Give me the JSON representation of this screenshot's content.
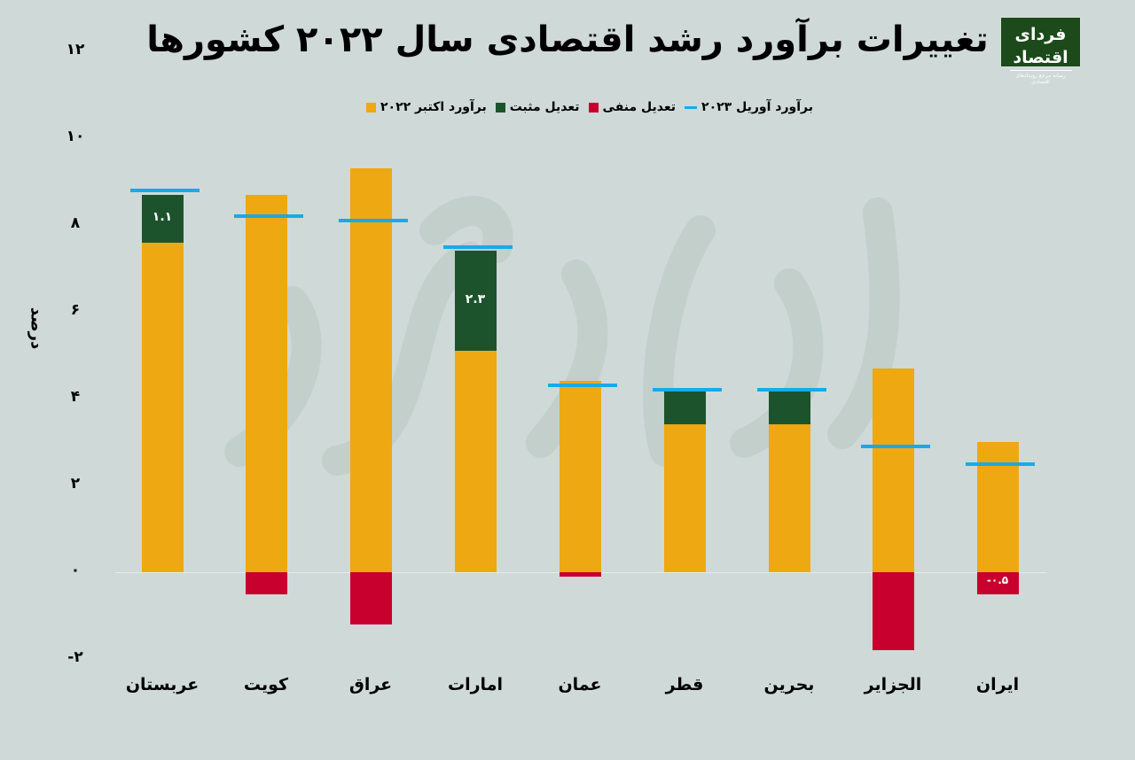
{
  "title": "تغییرات برآورد رشد اقتصادی سال ۲۰۲۲ کشورها",
  "logo": {
    "name": "فردای اقتصاد",
    "subtitle": "رسانه مرجع رویدادهای اقتصادی"
  },
  "legend": [
    {
      "label": "برآورد آوریل ۲۰۲۳",
      "type": "line",
      "color": "#18aae8"
    },
    {
      "label": "تعدیل منفی",
      "type": "box",
      "color": "#c8002d"
    },
    {
      "label": "تعدیل مثبت",
      "type": "box",
      "color": "#1c532c"
    },
    {
      "label": "برآورد اکتبر ۲۰۲۲",
      "type": "box",
      "color": "#eea811"
    }
  ],
  "y_axis": {
    "label": "درصد",
    "ticks": [
      {
        "value": 12,
        "label": "۱۲"
      },
      {
        "value": 10,
        "label": "۱۰"
      },
      {
        "value": 8,
        "label": "۸"
      },
      {
        "value": 6,
        "label": "۶"
      },
      {
        "value": 4,
        "label": "۴"
      },
      {
        "value": 2,
        "label": "۲"
      },
      {
        "value": 0,
        "label": "۰"
      },
      {
        "value": -2,
        "label": "-۲"
      }
    ]
  },
  "colors": {
    "october": "#eea811",
    "positive": "#1c532c",
    "negative": "#c8002d",
    "april": "#18aae8",
    "background": "#cfd9d8"
  },
  "chart_data": {
    "type": "bar",
    "title": "تغییرات برآورد رشد اقتصادی سال ۲۰۲۲ کشورها",
    "xlabel": "",
    "ylabel": "درصد",
    "ylim": [
      -2,
      12
    ],
    "grid": false,
    "legend_position": "top",
    "categories": [
      "عربستان",
      "کویت",
      "عراق",
      "امارات",
      "عمان",
      "قطر",
      "بحرین",
      "الجزایر",
      "ایران"
    ],
    "series": [
      {
        "name": "برآورد اکتبر ۲۰۲۲",
        "values": [
          7.6,
          8.7,
          9.3,
          5.1,
          4.4,
          3.4,
          3.4,
          4.7,
          3.0
        ]
      },
      {
        "name": "تعدیل مثبت",
        "values": [
          1.1,
          0,
          0,
          2.3,
          0,
          0.8,
          0.8,
          0,
          0
        ]
      },
      {
        "name": "تعدیل منفی",
        "values": [
          0,
          -0.5,
          -1.2,
          0,
          -0.1,
          0,
          0,
          -1.8,
          -0.5
        ]
      },
      {
        "name": "برآورد آوریل ۲۰۲۳",
        "values": [
          8.8,
          8.2,
          8.1,
          7.5,
          4.3,
          4.2,
          4.2,
          2.9,
          2.5
        ]
      }
    ],
    "annotations": [
      {
        "category": "عربستان",
        "series": "تعدیل مثبت",
        "text": "۱.۱"
      },
      {
        "category": "امارات",
        "series": "تعدیل مثبت",
        "text": "۲.۳"
      },
      {
        "category": "ایران",
        "series": "تعدیل منفی",
        "text": "-۰.۵"
      }
    ]
  }
}
